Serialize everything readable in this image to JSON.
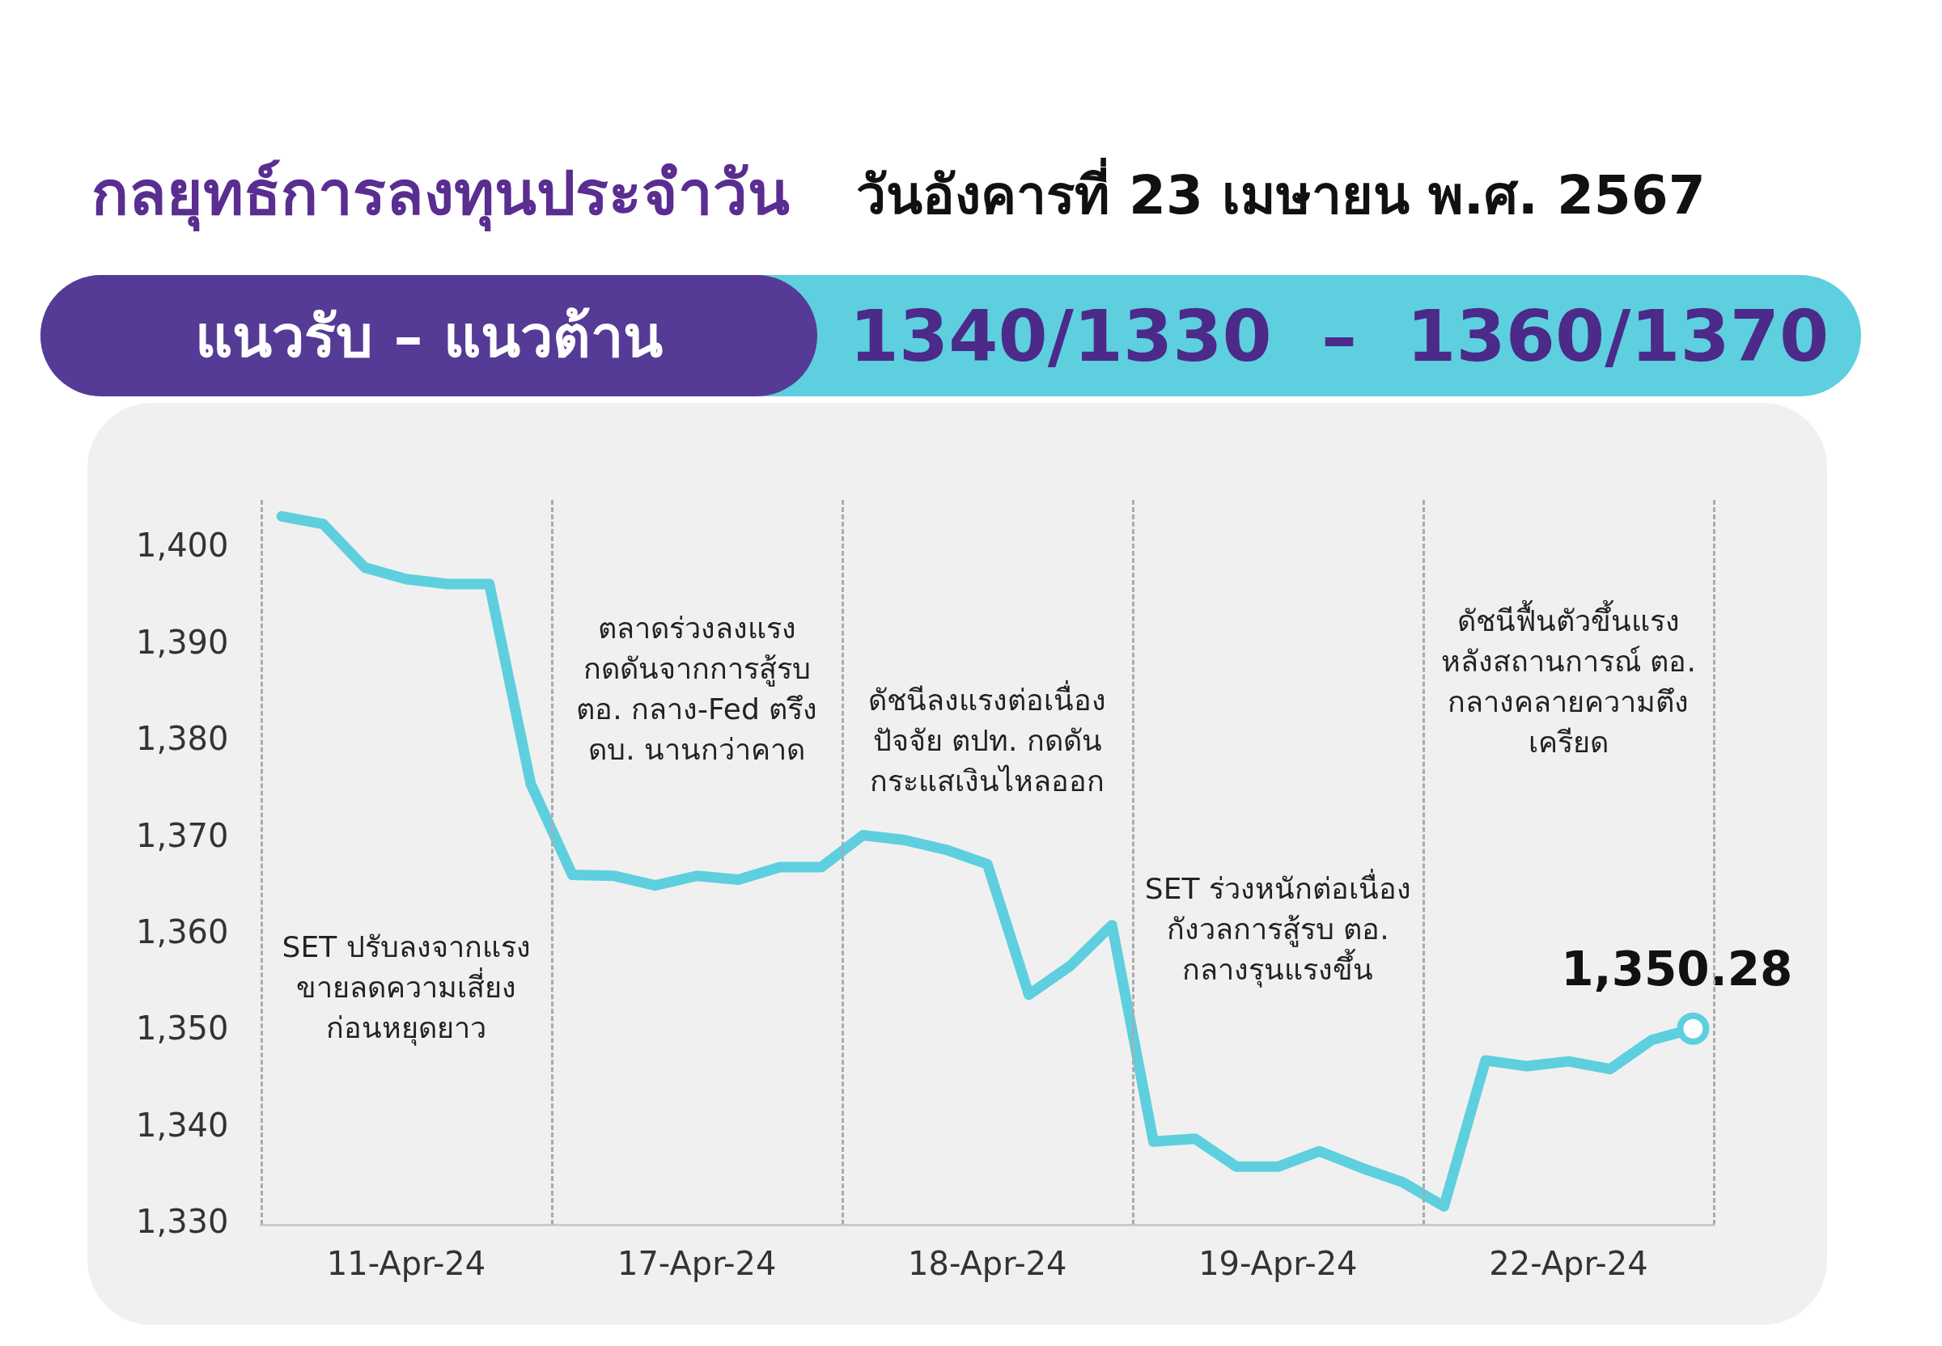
{
  "chart_data": {
    "type": "line",
    "title": "กลยุทธ์การลงทุนประจำวัน",
    "subtitle": "วันอังคารที่ 23 เมษายน พ.ศ. 2567",
    "annotations": [
      "แนวรับ – แนวต้าน",
      "1340/1330  –  1360/1370",
      "SET ปรับลงจากแรง\nขายลดความเสี่ยง\nก่อนหยุดยาว",
      "ตลาดร่วงลงแรง\nกดดันจากการสู้รบ\nตอ. กลาง-Fed ตรึง\nดบ. นานกว่าคาด",
      "ดัชนีลงแรงต่อเนื่อง\nปัจจัย ตปท. กดดัน\nกระแสเงินไหลออก",
      "SET ร่วงหนักต่อเนื่อง\nกังวลการสู้รบ ตอ.\nกลางรุนแรงขึ้น",
      "ดัชนีฟื้นตัวขึ้นแรง\nหลังสถานการณ์ ตอ.\nกลางคลายความตึง\nเครียด",
      {
        "text": "1,350.28",
        "y": 1350.28
      }
    ],
    "categories": [
      null,
      null,
      null,
      "11-Apr-24",
      null,
      null,
      null,
      null,
      null,
      null,
      "17-Apr-24",
      null,
      null,
      null,
      null,
      null,
      null,
      "18-Apr-24",
      null,
      null,
      null,
      null,
      null,
      null,
      "19-Apr-24",
      null,
      null,
      null,
      null,
      null,
      null,
      "22-Apr-24",
      null,
      null,
      null
    ],
    "series": [
      {
        "color": "#5ecfde",
        "values": [
          1403.3,
          1402.5,
          1398,
          1396.8,
          1396.3,
          1396.3,
          1375.6,
          1366.2,
          1366.1,
          1365.1,
          1366.1,
          1365.7,
          1367,
          1367,
          1370.3,
          1369.8,
          1368.8,
          1367.3,
          1353.8,
          1356.8,
          1361,
          1338.6,
          1338.9,
          1336,
          1336,
          1337.6,
          1335.9,
          1334.4,
          1331.9,
          1347,
          1346.4,
          1346.9,
          1346.1,
          1349.1,
          1350.28
        ]
      }
    ],
    "ylim": [
      1330,
      1405
    ],
    "yticks": [
      {
        "value": 1330,
        "label": "1,330"
      },
      {
        "value": 1340,
        "label": "1,340"
      },
      {
        "value": 1350,
        "label": "1,350"
      },
      {
        "value": 1360,
        "label": "1,360"
      },
      {
        "value": 1370,
        "label": "1,370"
      },
      {
        "value": 1380,
        "label": "1,380"
      },
      {
        "value": 1390,
        "label": "1,390"
      },
      {
        "value": 1400,
        "label": "1,400"
      }
    ],
    "grid": false,
    "legend": false,
    "line_style": "solid"
  }
}
